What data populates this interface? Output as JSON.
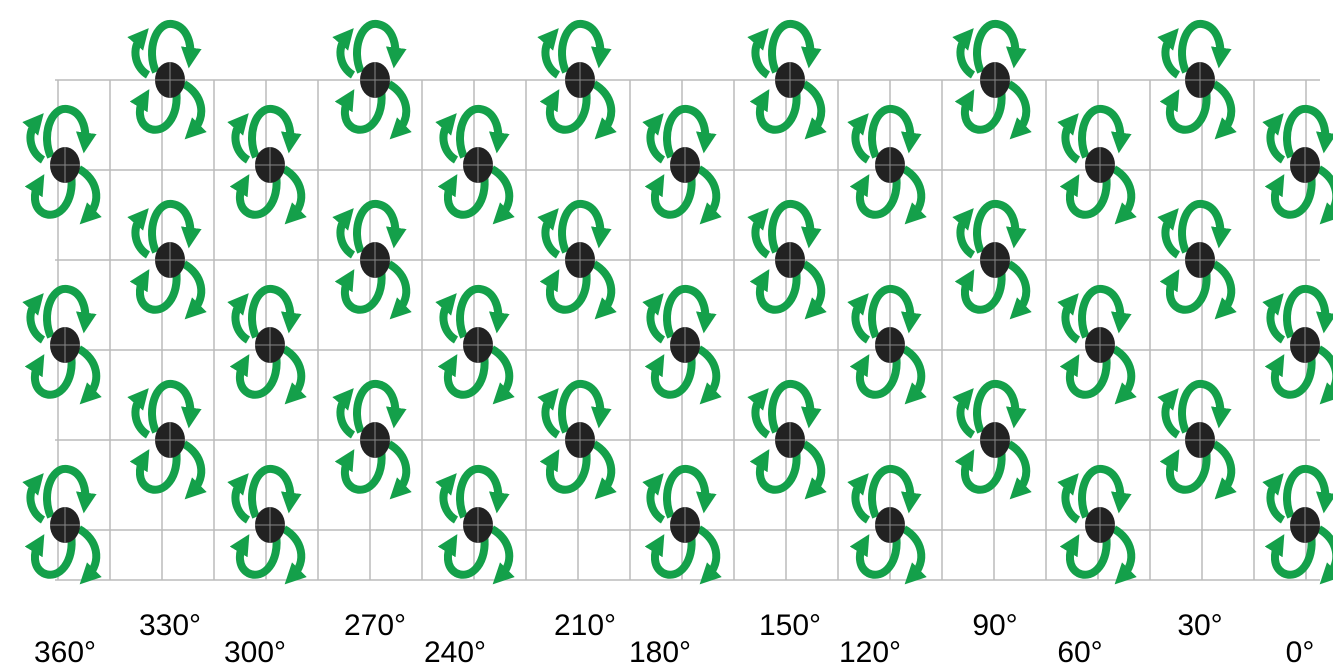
{
  "angle_labels": [
    "360°",
    "330°",
    "300°",
    "270°",
    "240°",
    "210°",
    "180°",
    "150°",
    "120°",
    "90°",
    "60°",
    "30°",
    "0°"
  ]
}
